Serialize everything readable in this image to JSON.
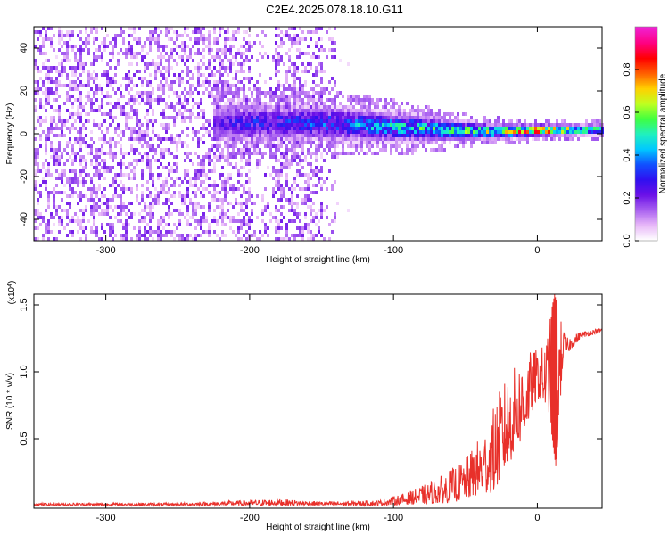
{
  "title": "C2E4.2025.078.18.10.G11",
  "chart_data": [
    {
      "type": "heatmap",
      "xlabel": "Height of straight line (km)",
      "ylabel": "Frequency (Hz)",
      "xlim": [
        -350,
        45
      ],
      "ylim": [
        -50,
        50
      ],
      "xticks": [
        -300,
        -200,
        -100,
        0
      ],
      "yticks": [
        -40,
        -20,
        0,
        20,
        40
      ],
      "colorbar": {
        "label": "Normalized spectral amplitude",
        "range": [
          0,
          1
        ],
        "ticks": [
          0.0,
          0.2,
          0.4,
          0.6,
          0.8
        ],
        "colors": [
          "#ffffff",
          "#e8b8f8",
          "#a860f0",
          "#6a10e8",
          "#3010f0",
          "#1050ff",
          "#00c8ff",
          "#20f0c0",
          "#40ff40",
          "#c0ff20",
          "#ffd000",
          "#ff6000",
          "#ff0000",
          "#ff0080",
          "#f020d0"
        ]
      },
      "ridge": {
        "description_points": [
          [
            -220,
            5
          ],
          [
            -150,
            5
          ],
          [
            -100,
            3
          ],
          [
            -60,
            1.5
          ],
          [
            -30,
            1
          ],
          [
            0,
            1.5
          ],
          [
            45,
            2
          ]
        ],
        "half_width_hz": [
          [
            -220,
            8
          ],
          [
            -150,
            7
          ],
          [
            -100,
            6
          ],
          [
            -60,
            4
          ],
          [
            -30,
            3
          ],
          [
            0,
            2.5
          ],
          [
            45,
            2
          ]
        ],
        "peak_amplitude": [
          [
            -220,
            0.25
          ],
          [
            -150,
            0.35
          ],
          [
            -100,
            0.45
          ],
          [
            -60,
            0.55
          ],
          [
            -30,
            0.6
          ],
          [
            0,
            0.85
          ],
          [
            45,
            0.5
          ]
        ]
      },
      "noise_region": {
        "x_from": -350,
        "x_to": -140,
        "level": 0.12,
        "gaps": [
          [
            -200,
            -185
          ],
          [
            -150,
            -140
          ]
        ]
      }
    },
    {
      "type": "line",
      "xlabel": "Height of straight line (km)",
      "ylabel": "SNR (10 * v/v)",
      "multiplier_label": "(x10",
      "multiplier_exp": "4",
      "xlim": [
        -350,
        45
      ],
      "ylim": [
        -0.02,
        1.58
      ],
      "xticks": [
        -300,
        -200,
        -100,
        0
      ],
      "yticks": [
        0.5,
        1.0,
        1.5
      ],
      "ytick_labels": [
        "0.5",
        "1.0",
        "1.5"
      ],
      "series": [
        {
          "color": "#e8302a",
          "envelope": [
            [
              -350,
              0.02
            ],
            [
              -250,
              0.02
            ],
            [
              -180,
              0.05
            ],
            [
              -150,
              0.03
            ],
            [
              -110,
              0.04
            ],
            [
              -90,
              0.1
            ],
            [
              -70,
              0.2
            ],
            [
              -50,
              0.35
            ],
            [
              -35,
              0.6
            ],
            [
              -25,
              0.9
            ],
            [
              -15,
              1.05
            ],
            [
              -5,
              1.15
            ],
            [
              5,
              1.2
            ],
            [
              12,
              1.58
            ],
            [
              20,
              1.25
            ],
            [
              30,
              1.3
            ],
            [
              45,
              1.33
            ]
          ],
          "min_envelope": [
            [
              -350,
              0.0
            ],
            [
              -110,
              0.0
            ],
            [
              -60,
              0.02
            ],
            [
              -30,
              0.1
            ],
            [
              -10,
              0.5
            ],
            [
              0,
              0.8
            ],
            [
              8,
              0.7
            ],
            [
              13,
              0.28
            ],
            [
              18,
              1.1
            ],
            [
              30,
              1.25
            ],
            [
              45,
              1.3
            ]
          ]
        }
      ]
    }
  ]
}
